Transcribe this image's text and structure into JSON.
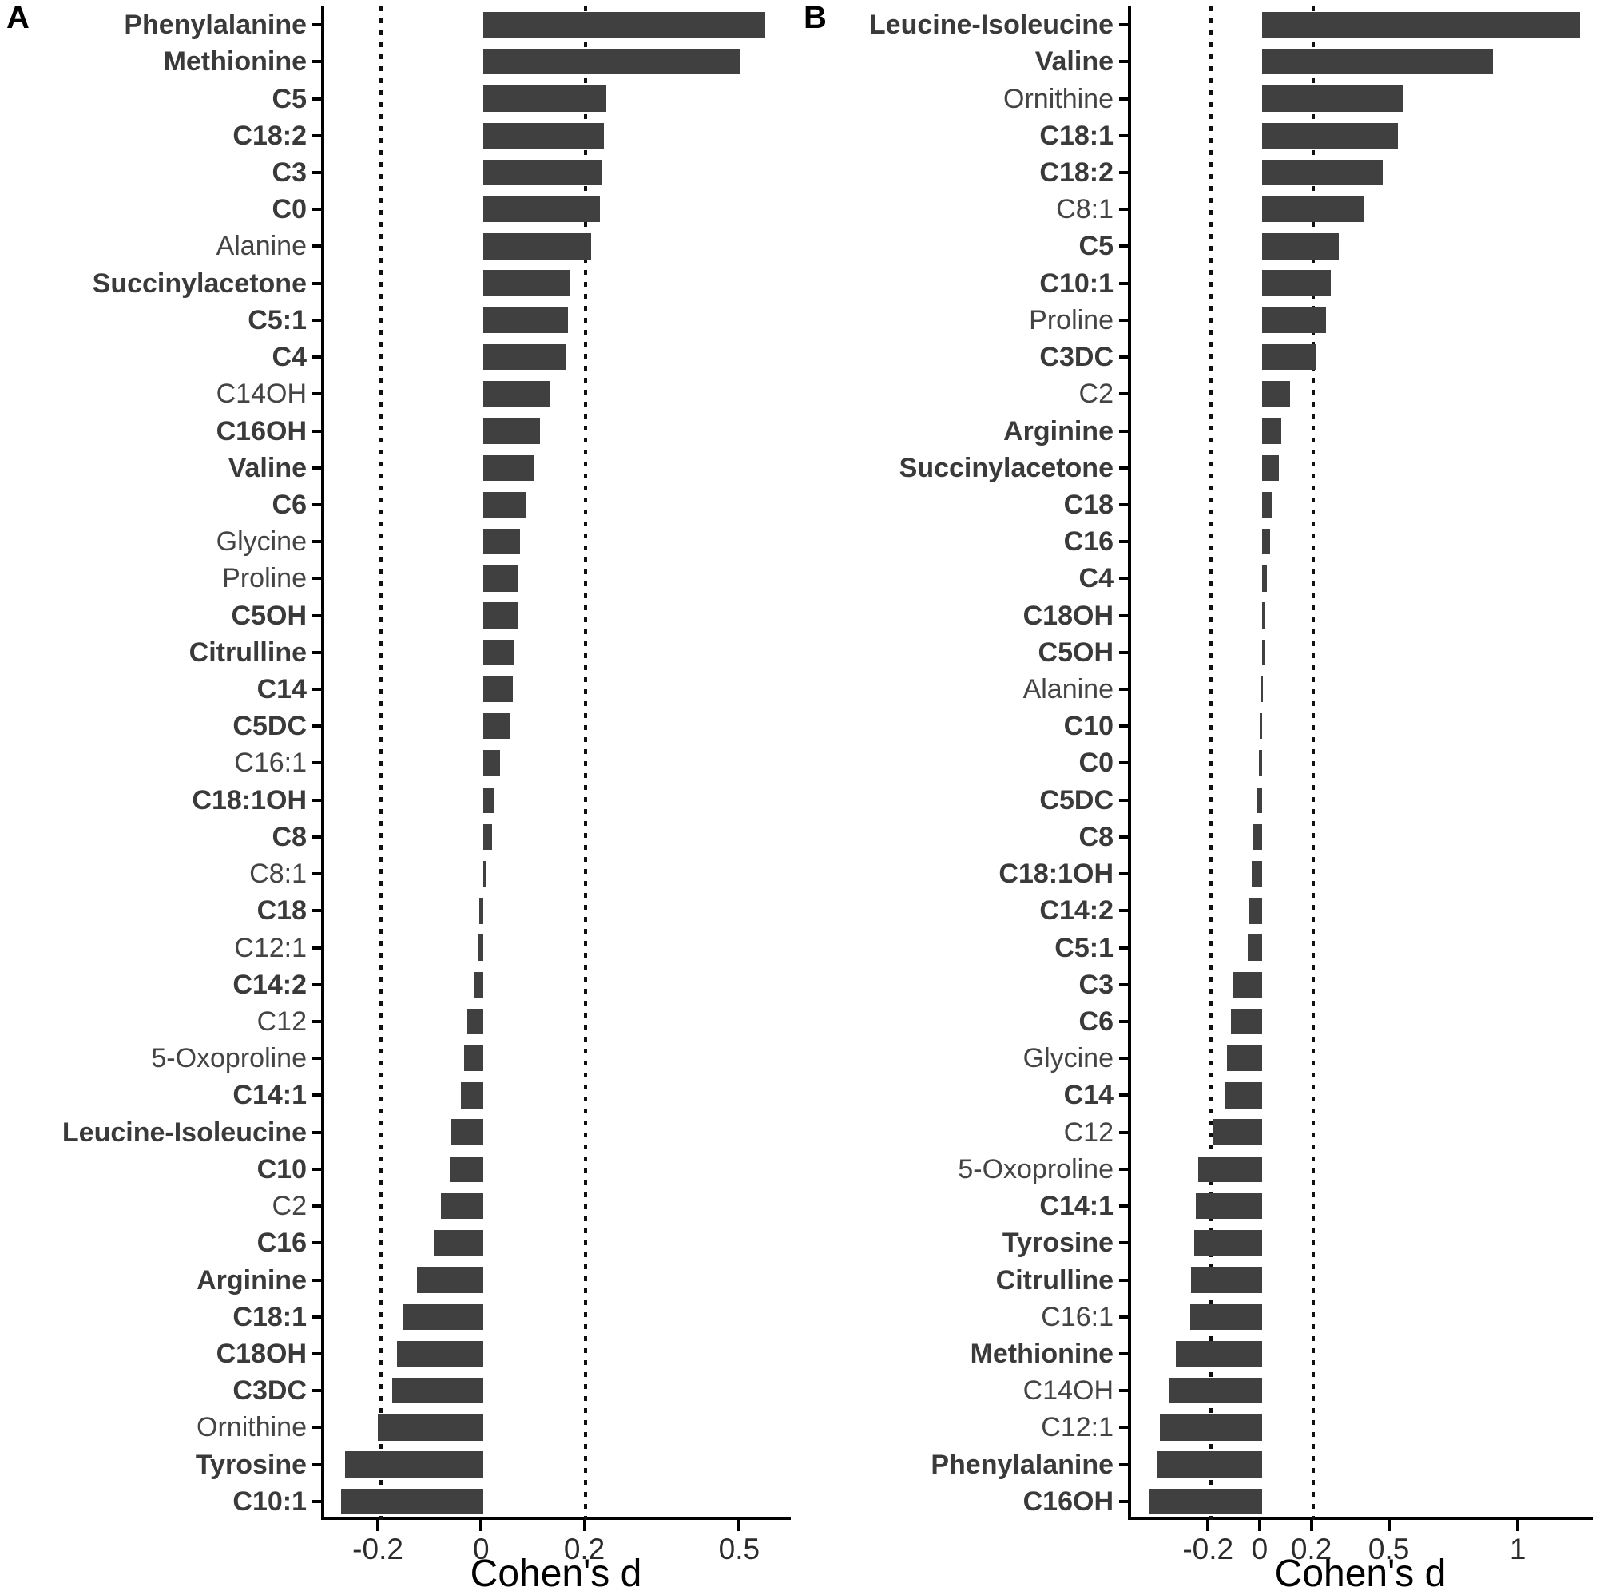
{
  "figure": {
    "description": "Two-panel horizontal bar chart of Cohen's d effect sizes for metabolites"
  },
  "chart_data": [
    {
      "id": "A",
      "letter": "A",
      "type": "bar",
      "orientation": "horizontal",
      "xlabel": "Cohen's d",
      "xlim": [
        -0.31,
        0.6
      ],
      "xticks": [
        {
          "v": -0.2,
          "label": "-0.2"
        },
        {
          "v": 0,
          "label": "0"
        },
        {
          "v": 0.2,
          "label": "0.2"
        },
        {
          "v": 0.5,
          "label": "0.5"
        }
      ],
      "ref_lines": [
        -0.2,
        0.2
      ],
      "grid": false,
      "bar_color": "#404040",
      "bars": [
        {
          "label": "Phenylalanine",
          "value": 0.55,
          "bold": true
        },
        {
          "label": "Methionine",
          "value": 0.5,
          "bold": true
        },
        {
          "label": "C5",
          "value": 0.24,
          "bold": true
        },
        {
          "label": "C18:2",
          "value": 0.235,
          "bold": true
        },
        {
          "label": "C3",
          "value": 0.23,
          "bold": true
        },
        {
          "label": "C0",
          "value": 0.228,
          "bold": true
        },
        {
          "label": "Alanine",
          "value": 0.21,
          "bold": false
        },
        {
          "label": "Succinylacetone",
          "value": 0.17,
          "bold": true
        },
        {
          "label": "C5:1",
          "value": 0.165,
          "bold": true
        },
        {
          "label": "C4",
          "value": 0.16,
          "bold": true
        },
        {
          "label": "C14OH",
          "value": 0.13,
          "bold": false
        },
        {
          "label": "C16OH",
          "value": 0.11,
          "bold": true
        },
        {
          "label": "Valine",
          "value": 0.1,
          "bold": true
        },
        {
          "label": "C6",
          "value": 0.083,
          "bold": true
        },
        {
          "label": "Glycine",
          "value": 0.072,
          "bold": false
        },
        {
          "label": "Proline",
          "value": 0.069,
          "bold": false
        },
        {
          "label": "C5OH",
          "value": 0.067,
          "bold": true
        },
        {
          "label": "Citrulline",
          "value": 0.06,
          "bold": true
        },
        {
          "label": "C14",
          "value": 0.058,
          "bold": true
        },
        {
          "label": "C5DC",
          "value": 0.052,
          "bold": true
        },
        {
          "label": "C16:1",
          "value": 0.033,
          "bold": false
        },
        {
          "label": "C18:1OH",
          "value": 0.02,
          "bold": true
        },
        {
          "label": "C8",
          "value": 0.018,
          "bold": true
        },
        {
          "label": "C8:1",
          "value": 0.006,
          "bold": false
        },
        {
          "label": "C18",
          "value": -0.007,
          "bold": true
        },
        {
          "label": "C12:1",
          "value": -0.009,
          "bold": false
        },
        {
          "label": "C14:2",
          "value": -0.018,
          "bold": true
        },
        {
          "label": "C12",
          "value": -0.032,
          "bold": false
        },
        {
          "label": "5-Oxoproline",
          "value": -0.038,
          "bold": false
        },
        {
          "label": "C14:1",
          "value": -0.044,
          "bold": true
        },
        {
          "label": "Leucine-Isoleucine",
          "value": -0.063,
          "bold": true
        },
        {
          "label": "C10",
          "value": -0.066,
          "bold": true
        },
        {
          "label": "C2",
          "value": -0.083,
          "bold": false
        },
        {
          "label": "C16",
          "value": -0.097,
          "bold": true
        },
        {
          "label": "Arginine",
          "value": -0.13,
          "bold": true
        },
        {
          "label": "C18:1",
          "value": -0.157,
          "bold": true
        },
        {
          "label": "C18OH",
          "value": -0.168,
          "bold": true
        },
        {
          "label": "C3DC",
          "value": -0.177,
          "bold": true
        },
        {
          "label": "Ornithine",
          "value": -0.205,
          "bold": false
        },
        {
          "label": "Tyrosine",
          "value": -0.27,
          "bold": true
        },
        {
          "label": "C10:1",
          "value": -0.278,
          "bold": true
        }
      ]
    },
    {
      "id": "B",
      "letter": "B",
      "type": "bar",
      "orientation": "horizontal",
      "xlabel": "Cohen's d",
      "xlim": [
        -0.51,
        1.29
      ],
      "xticks": [
        {
          "v": -0.2,
          "label": "-0.2"
        },
        {
          "v": 0,
          "label": "0"
        },
        {
          "v": 0.2,
          "label": "0.2"
        },
        {
          "v": 0.5,
          "label": "0.5"
        },
        {
          "v": 1,
          "label": "1"
        }
      ],
      "ref_lines": [
        -0.2,
        0.2
      ],
      "grid": false,
      "bar_color": "#404040",
      "bars": [
        {
          "label": "Leucine-Isoleucine",
          "value": 1.24,
          "bold": true
        },
        {
          "label": "Valine",
          "value": 0.9,
          "bold": true
        },
        {
          "label": "Ornithine",
          "value": 0.55,
          "bold": false
        },
        {
          "label": "C18:1",
          "value": 0.53,
          "bold": true
        },
        {
          "label": "C18:2",
          "value": 0.47,
          "bold": true
        },
        {
          "label": "C8:1",
          "value": 0.4,
          "bold": false
        },
        {
          "label": "C5",
          "value": 0.3,
          "bold": true
        },
        {
          "label": "C10:1",
          "value": 0.27,
          "bold": true
        },
        {
          "label": "Proline",
          "value": 0.25,
          "bold": false
        },
        {
          "label": "C3DC",
          "value": 0.21,
          "bold": true
        },
        {
          "label": "C2",
          "value": 0.11,
          "bold": false
        },
        {
          "label": "Arginine",
          "value": 0.075,
          "bold": true
        },
        {
          "label": "Succinylacetone",
          "value": 0.067,
          "bold": true
        },
        {
          "label": "C18",
          "value": 0.037,
          "bold": true
        },
        {
          "label": "C16",
          "value": 0.032,
          "bold": true
        },
        {
          "label": "C4",
          "value": 0.02,
          "bold": true
        },
        {
          "label": "C18OH",
          "value": 0.013,
          "bold": true
        },
        {
          "label": "C5OH",
          "value": 0.01,
          "bold": true
        },
        {
          "label": "Alanine",
          "value": -0.005,
          "bold": false
        },
        {
          "label": "C10",
          "value": -0.008,
          "bold": true
        },
        {
          "label": "C0",
          "value": -0.012,
          "bold": true
        },
        {
          "label": "C5DC",
          "value": -0.018,
          "bold": true
        },
        {
          "label": "C8",
          "value": -0.033,
          "bold": true
        },
        {
          "label": "C18:1OH",
          "value": -0.04,
          "bold": true
        },
        {
          "label": "C14:2",
          "value": -0.049,
          "bold": true
        },
        {
          "label": "C5:1",
          "value": -0.054,
          "bold": true
        },
        {
          "label": "C3",
          "value": -0.111,
          "bold": true
        },
        {
          "label": "C6",
          "value": -0.122,
          "bold": true
        },
        {
          "label": "Glycine",
          "value": -0.137,
          "bold": false
        },
        {
          "label": "C14",
          "value": -0.142,
          "bold": true
        },
        {
          "label": "C12",
          "value": -0.189,
          "bold": false
        },
        {
          "label": "5-Oxoproline",
          "value": -0.248,
          "bold": false
        },
        {
          "label": "C14:1",
          "value": -0.257,
          "bold": true
        },
        {
          "label": "Tyrosine",
          "value": -0.265,
          "bold": true
        },
        {
          "label": "Citrulline",
          "value": -0.275,
          "bold": true
        },
        {
          "label": "C16:1",
          "value": -0.28,
          "bold": false
        },
        {
          "label": "Methionine",
          "value": -0.337,
          "bold": true
        },
        {
          "label": "C14OH",
          "value": -0.365,
          "bold": false
        },
        {
          "label": "C12:1",
          "value": -0.397,
          "bold": false
        },
        {
          "label": "Phenylalanine",
          "value": -0.411,
          "bold": true
        },
        {
          "label": "C16OH",
          "value": -0.437,
          "bold": true
        }
      ]
    }
  ]
}
